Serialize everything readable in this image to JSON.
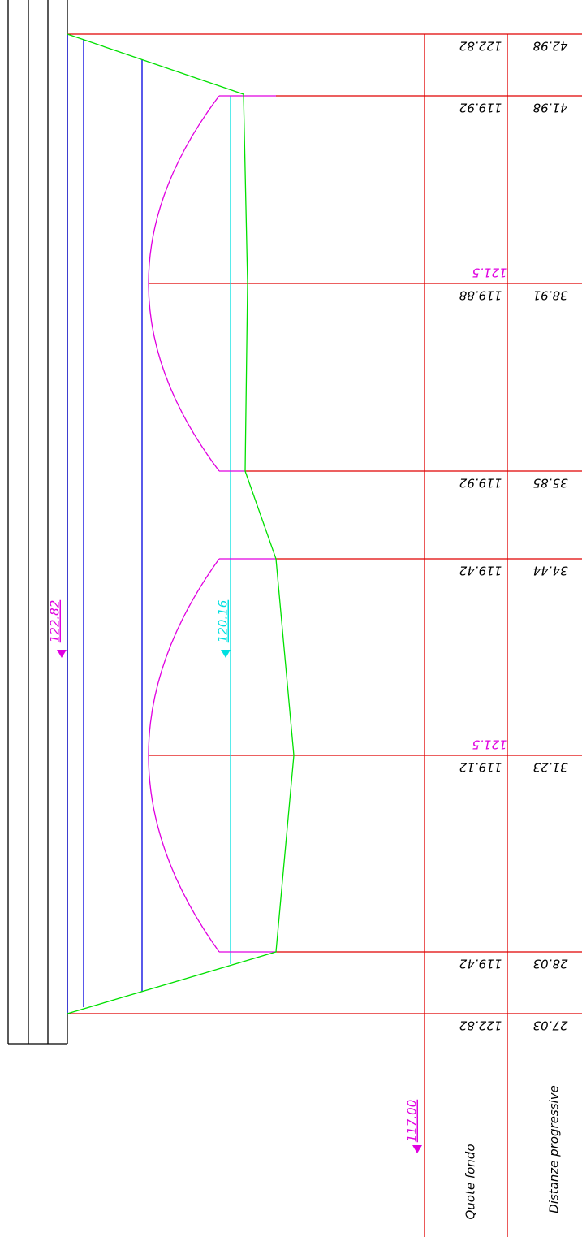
{
  "profile": {
    "markers": [
      {
        "label": "122.82"
      },
      {
        "label": "120.16"
      },
      {
        "label": "117.00"
      }
    ],
    "weir_labels": [
      "121.5",
      "121.5"
    ],
    "rows": {
      "quote_fondo": "Quote fondo",
      "distanze": "Distanze progressive"
    },
    "sections": [
      {
        "quota": "122.82",
        "distanza": "42.98"
      },
      {
        "quota": "119.92",
        "distanza": "41.98"
      },
      {
        "quota": "119.88",
        "distanza": "38.91"
      },
      {
        "quota": "119.92",
        "distanza": "35.85"
      },
      {
        "quota": "119.42",
        "distanza": "34.44"
      },
      {
        "quota": "119.12",
        "distanza": "31.23"
      },
      {
        "quota": "119.42",
        "distanza": "28.03"
      },
      {
        "quota": "122.82",
        "distanza": "27.03"
      }
    ]
  }
}
